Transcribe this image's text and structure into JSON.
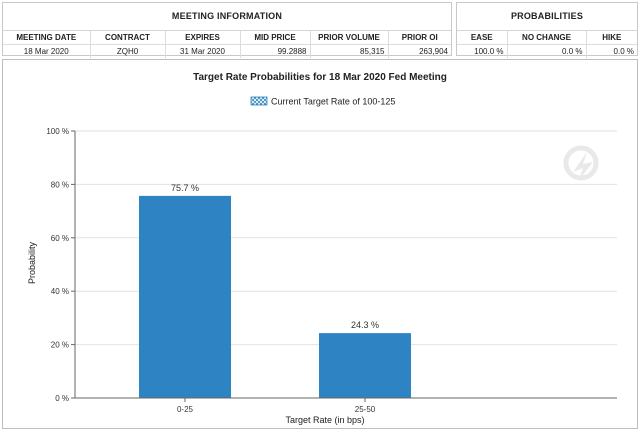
{
  "meeting_info": {
    "title": "MEETING INFORMATION",
    "headers": [
      "MEETING DATE",
      "CONTRACT",
      "EXPIRES",
      "MID PRICE",
      "PRIOR VOLUME",
      "PRIOR OI"
    ],
    "row": [
      "18 Mar 2020",
      "ZQH0",
      "31 Mar 2020",
      "99.2888",
      "85,315",
      "263,904"
    ]
  },
  "probabilities": {
    "title": "PROBABILITIES",
    "headers": [
      "EASE",
      "NO CHANGE",
      "HIKE"
    ],
    "row": [
      "100.0 %",
      "0.0 %",
      "0.0 %"
    ]
  },
  "colors": {
    "bar": "#2e84c2",
    "grid": "#e2e2e2",
    "axis": "#666666"
  },
  "chart_data": {
    "type": "bar",
    "title": "Target Rate Probabilities for 18 Mar 2020 Fed Meeting",
    "legend": {
      "label": "Current Target Rate of 100-125",
      "placement": "top-center"
    },
    "xlabel": "Target Rate (in bps)",
    "ylabel": "Probability",
    "categories": [
      "0-25",
      "25-50"
    ],
    "values": [
      75.7,
      24.3
    ],
    "data_labels": [
      "75.7 %",
      "24.3 %"
    ],
    "ylim": [
      0,
      100
    ],
    "yticks": [
      0,
      20,
      40,
      60,
      80,
      100
    ],
    "ytick_labels": [
      "0 %",
      "20 %",
      "40 %",
      "60 %",
      "80 %",
      "100 %"
    ],
    "grid": true
  }
}
